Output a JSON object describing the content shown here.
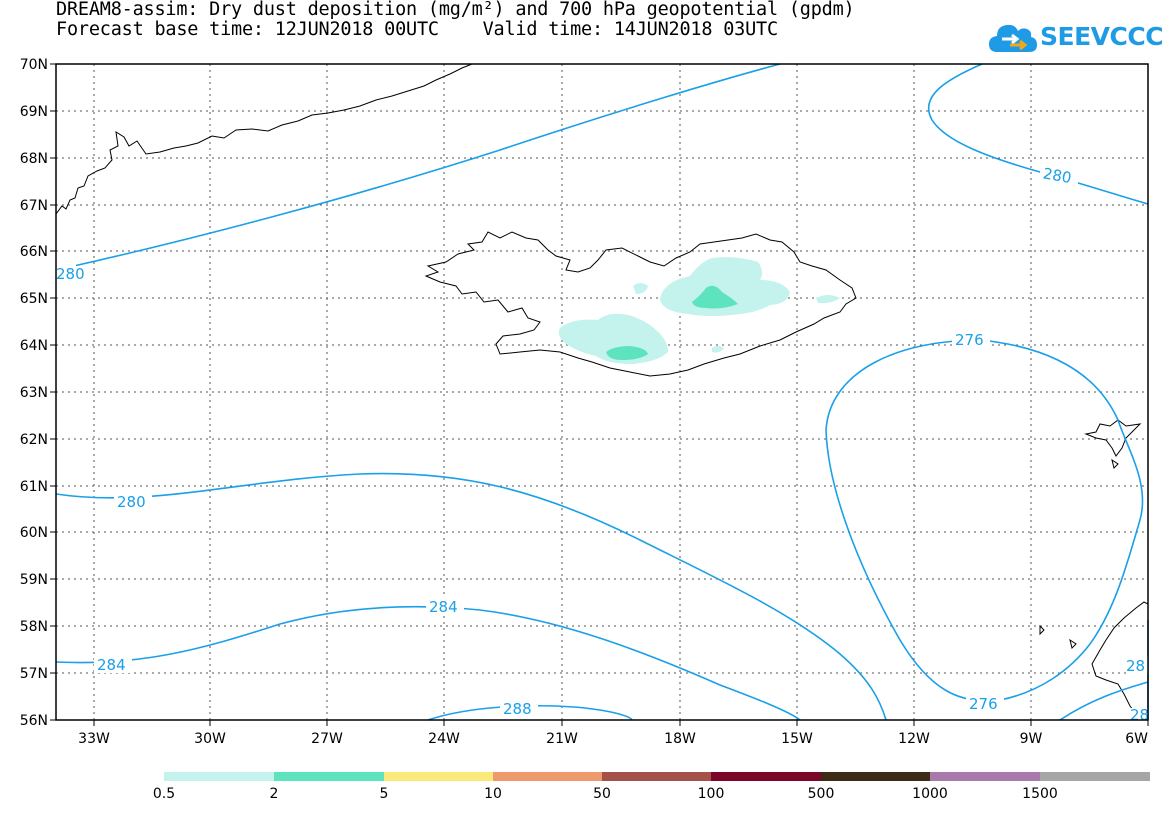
{
  "header": {
    "title_line1": "DREAM8-assim: Dry dust deposition (mg/m²) and 700 hPa geopotential (gpdm)",
    "title_line2": "Forecast base time: 12JUN2018 00UTC    Valid time: 14JUN2018 03UTC"
  },
  "logo": {
    "text": "SEEVCCC",
    "icon": "cloud-arrow-icon",
    "color": "#1f9be6"
  },
  "map": {
    "lat_labels": [
      "70N",
      "69N",
      "68N",
      "67N",
      "66N",
      "65N",
      "64N",
      "63N",
      "62N",
      "61N",
      "60N",
      "59N",
      "58N",
      "57N",
      "56N"
    ],
    "lon_labels": [
      "33W",
      "30W",
      "27W",
      "24W",
      "21W",
      "18W",
      "15W",
      "12W",
      "9W",
      "6W"
    ],
    "contour_color": "#1aa0e8",
    "contour_labels": [
      "280",
      "280",
      "280",
      "284",
      "284",
      "288",
      "276",
      "276",
      "28",
      "28"
    ]
  },
  "colorbar": {
    "colors": [
      "#c4f2ec",
      "#5ee3bf",
      "#f9ea7a",
      "#ef9a6c",
      "#a5514a",
      "#7b0629",
      "#3d2b16",
      "#a77aab",
      "#a6a6a6"
    ],
    "labels": [
      "0.5",
      "2",
      "5",
      "10",
      "50",
      "100",
      "500",
      "1000",
      "1500"
    ]
  }
}
